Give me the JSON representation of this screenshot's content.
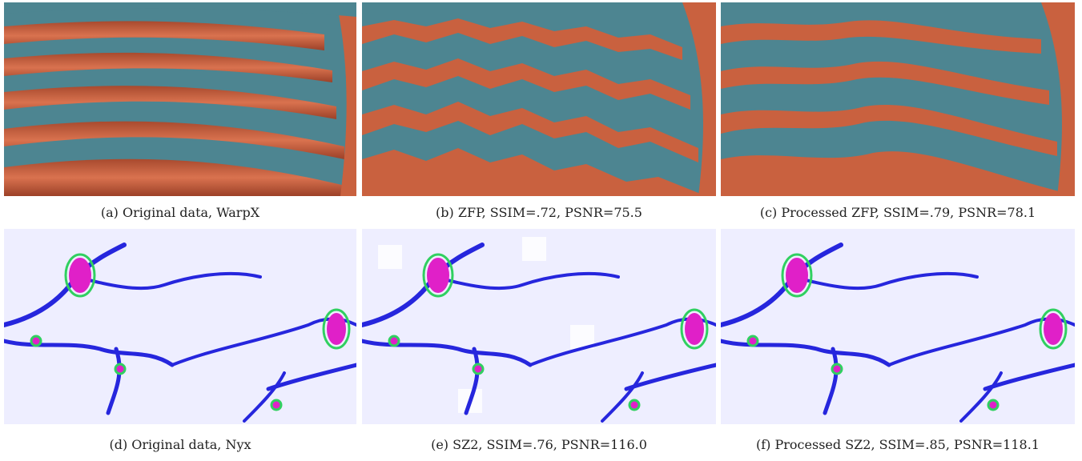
{
  "figure": {
    "panels": [
      {
        "id": "a",
        "caption": "(a) Original data, WarpX"
      },
      {
        "id": "b",
        "caption": "(b) ZFP, SSIM=.72, PSNR=75.5"
      },
      {
        "id": "c",
        "caption": "(c) Processed ZFP, SSIM=.79, PSNR=78.1"
      },
      {
        "id": "d",
        "caption": "(d) Original data, Nyx"
      },
      {
        "id": "e",
        "caption": "(e) SZ2, SSIM=.76, PSNR=116.0"
      },
      {
        "id": "f",
        "caption": "(f) Processed SZ2, SSIM=.85, PSNR=118.1"
      }
    ]
  },
  "colors": {
    "teal": "#4d8591",
    "orange": "#c9613f",
    "nyx_bg": "#e9eaff",
    "nyx_filament": "#2222dd",
    "nyx_hot": "#e020c8",
    "nyx_green": "#30d060"
  }
}
